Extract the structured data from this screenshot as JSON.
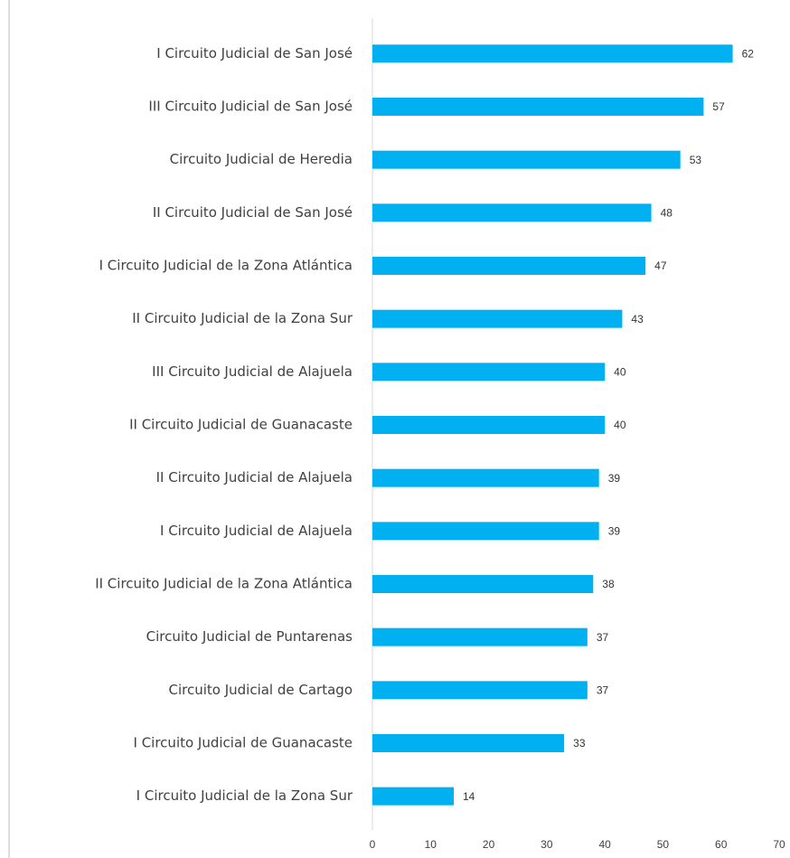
{
  "chart_data": {
    "type": "bar",
    "orientation": "horizontal",
    "categories": [
      "I Circuito Judicial de San José",
      "III Circuito Judicial de San José",
      "Circuito Judicial de Heredia",
      "II Circuito Judicial de San José",
      "I Circuito Judicial de la Zona Atlántica",
      "II Circuito Judicial de la Zona Sur",
      "III Circuito Judicial de Alajuela",
      "II Circuito Judicial de Guanacaste",
      "II Circuito Judicial de Alajuela",
      "I Circuito Judicial de Alajuela",
      "II Circuito Judicial de la Zona Atlántica",
      "Circuito Judicial de Puntarenas",
      "Circuito Judicial de Cartago",
      "I Circuito Judicial de Guanacaste",
      "I Circuito Judicial de la Zona Sur"
    ],
    "values": [
      62,
      57,
      53,
      48,
      47,
      43,
      40,
      40,
      39,
      39,
      38,
      37,
      37,
      33,
      14
    ],
    "color": "#00b0f0",
    "xlim": [
      0,
      70
    ],
    "xticks": [
      0,
      10,
      20,
      30,
      40,
      50,
      60,
      70
    ],
    "grid": false
  }
}
